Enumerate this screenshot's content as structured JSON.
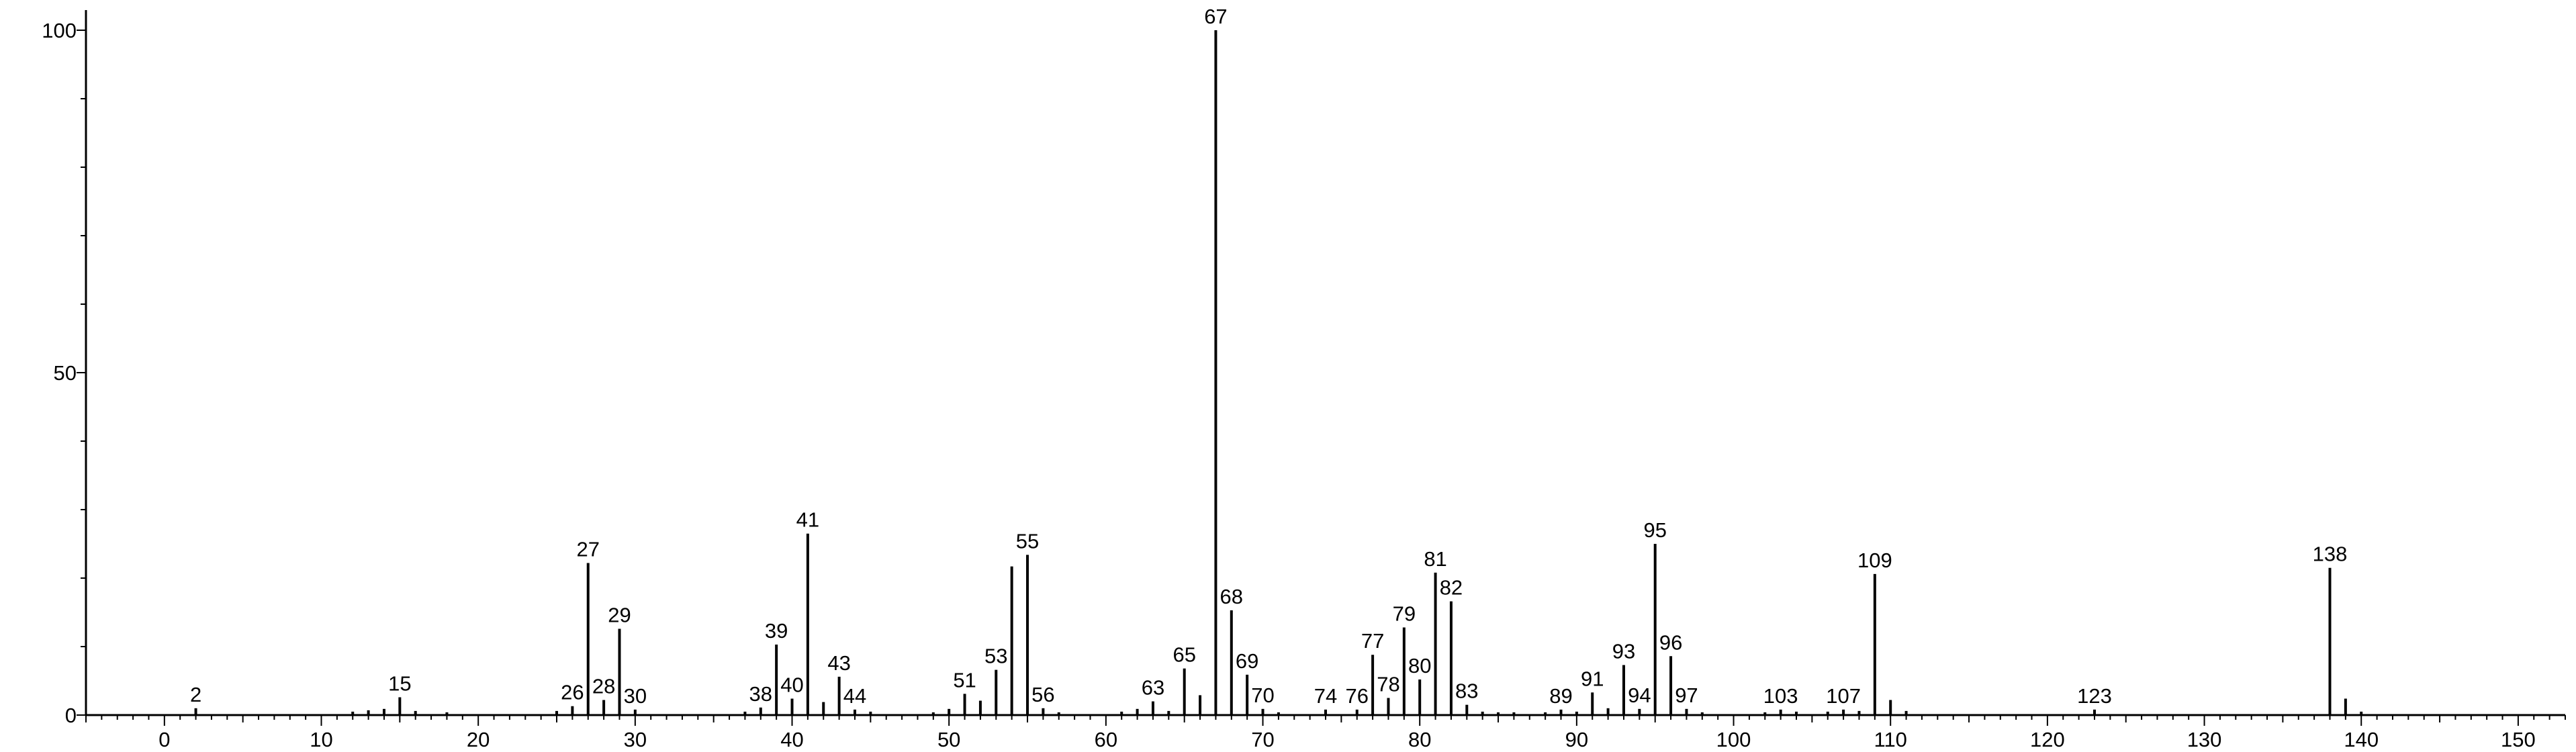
{
  "chart_data": {
    "type": "bar",
    "title": "",
    "xlabel": "",
    "ylabel": "",
    "xlim": [
      -5,
      153
    ],
    "ylim": [
      0,
      100
    ],
    "x_ticks": [
      0,
      10,
      20,
      30,
      40,
      50,
      60,
      70,
      80,
      90,
      100,
      110,
      120,
      130,
      140,
      150
    ],
    "y_ticks": [
      0,
      50,
      100
    ],
    "grid": false,
    "colors": {
      "bar": "#000000",
      "axis": "#000000",
      "text": "#000000"
    },
    "peaks": [
      {
        "x": 2,
        "y": 1.0,
        "label": "2"
      },
      {
        "x": 12,
        "y": 0.5
      },
      {
        "x": 13,
        "y": 0.7
      },
      {
        "x": 14,
        "y": 0.9
      },
      {
        "x": 15,
        "y": 2.6,
        "label": "15"
      },
      {
        "x": 16,
        "y": 0.6
      },
      {
        "x": 18,
        "y": 0.4
      },
      {
        "x": 25,
        "y": 0.6
      },
      {
        "x": 26,
        "y": 1.3,
        "label": "26"
      },
      {
        "x": 27,
        "y": 22.2,
        "label": "27"
      },
      {
        "x": 28,
        "y": 2.2,
        "label": "28"
      },
      {
        "x": 29,
        "y": 12.6,
        "label": "29"
      },
      {
        "x": 30,
        "y": 0.8,
        "label": "30"
      },
      {
        "x": 37,
        "y": 0.5
      },
      {
        "x": 38,
        "y": 1.1,
        "label": "38"
      },
      {
        "x": 39,
        "y": 10.3,
        "label": "39"
      },
      {
        "x": 40,
        "y": 2.4,
        "label": "40"
      },
      {
        "x": 41,
        "y": 26.5,
        "label": "41"
      },
      {
        "x": 42,
        "y": 1.9
      },
      {
        "x": 43,
        "y": 5.6,
        "label": "43"
      },
      {
        "x": 44,
        "y": 0.8,
        "label": "44"
      },
      {
        "x": 45,
        "y": 0.5
      },
      {
        "x": 49,
        "y": 0.4
      },
      {
        "x": 50,
        "y": 0.9
      },
      {
        "x": 51,
        "y": 3.1,
        "label": "51"
      },
      {
        "x": 52,
        "y": 2.1
      },
      {
        "x": 53,
        "y": 6.6,
        "label": "53"
      },
      {
        "x": 54,
        "y": 21.7
      },
      {
        "x": 55,
        "y": 23.4,
        "label": "55"
      },
      {
        "x": 56,
        "y": 1.0,
        "label": "56"
      },
      {
        "x": 57,
        "y": 0.4
      },
      {
        "x": 61,
        "y": 0.5
      },
      {
        "x": 62,
        "y": 0.9
      },
      {
        "x": 63,
        "y": 2.0,
        "label": "63"
      },
      {
        "x": 64,
        "y": 0.6
      },
      {
        "x": 65,
        "y": 6.8,
        "label": "65"
      },
      {
        "x": 66,
        "y": 2.9
      },
      {
        "x": 67,
        "y": 100.0,
        "label": "67"
      },
      {
        "x": 68,
        "y": 15.3,
        "label": "68"
      },
      {
        "x": 69,
        "y": 5.9,
        "label": "69"
      },
      {
        "x": 70,
        "y": 0.9,
        "label": "70"
      },
      {
        "x": 71,
        "y": 0.4
      },
      {
        "x": 74,
        "y": 0.8,
        "label": "74"
      },
      {
        "x": 76,
        "y": 0.8,
        "label": "76"
      },
      {
        "x": 77,
        "y": 8.8,
        "label": "77"
      },
      {
        "x": 78,
        "y": 2.5,
        "label": "78"
      },
      {
        "x": 79,
        "y": 12.8,
        "label": "79"
      },
      {
        "x": 80,
        "y": 5.2,
        "label": "80"
      },
      {
        "x": 81,
        "y": 20.8,
        "label": "81"
      },
      {
        "x": 82,
        "y": 16.6,
        "label": "82"
      },
      {
        "x": 83,
        "y": 1.5,
        "label": "83"
      },
      {
        "x": 84,
        "y": 0.5
      },
      {
        "x": 85,
        "y": 0.4
      },
      {
        "x": 86,
        "y": 0.4
      },
      {
        "x": 88,
        "y": 0.4
      },
      {
        "x": 89,
        "y": 0.8,
        "label": "89"
      },
      {
        "x": 90,
        "y": 0.5
      },
      {
        "x": 91,
        "y": 3.3,
        "label": "91"
      },
      {
        "x": 92,
        "y": 1.0
      },
      {
        "x": 93,
        "y": 7.3,
        "label": "93"
      },
      {
        "x": 94,
        "y": 0.9,
        "label": "94"
      },
      {
        "x": 95,
        "y": 25.0,
        "label": "95"
      },
      {
        "x": 96,
        "y": 8.6,
        "label": "96"
      },
      {
        "x": 97,
        "y": 0.9,
        "label": "97"
      },
      {
        "x": 98,
        "y": 0.4
      },
      {
        "x": 102,
        "y": 0.4
      },
      {
        "x": 103,
        "y": 0.8,
        "label": "103"
      },
      {
        "x": 104,
        "y": 0.5
      },
      {
        "x": 106,
        "y": 0.5
      },
      {
        "x": 107,
        "y": 0.8,
        "label": "107"
      },
      {
        "x": 108,
        "y": 0.6
      },
      {
        "x": 109,
        "y": 20.6,
        "label": "109"
      },
      {
        "x": 110,
        "y": 2.2
      },
      {
        "x": 111,
        "y": 0.6
      },
      {
        "x": 123,
        "y": 0.8,
        "label": "123"
      },
      {
        "x": 138,
        "y": 21.5,
        "label": "138"
      },
      {
        "x": 139,
        "y": 2.4
      },
      {
        "x": 140,
        "y": 0.5
      }
    ]
  }
}
